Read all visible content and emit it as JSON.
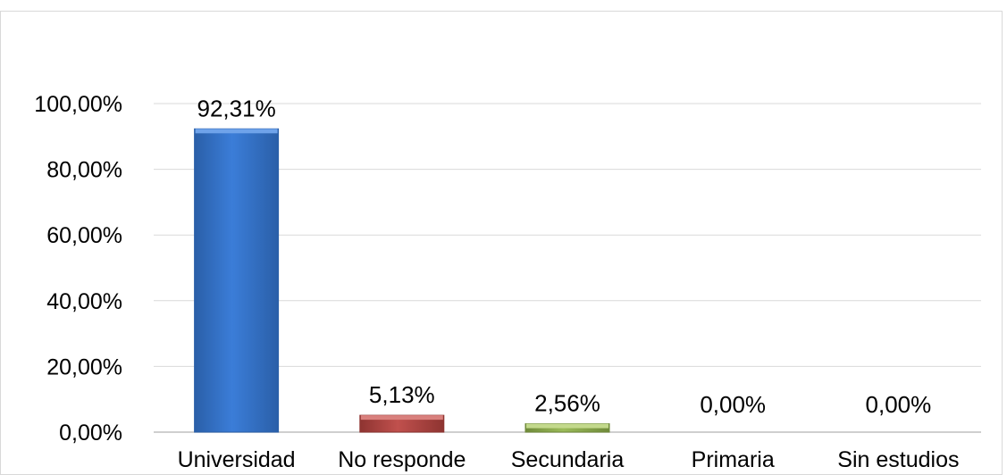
{
  "chart_data": {
    "type": "bar",
    "categories": [
      "Universidad",
      "No responde",
      "Secundaria",
      "Primaria",
      "Sin estudios"
    ],
    "values": [
      92.31,
      5.13,
      2.56,
      0.0,
      0.0
    ],
    "value_labels": [
      "92,31%",
      "5,13%",
      "2,56%",
      "0,00%",
      "0,00%"
    ],
    "y_ticks": [
      0,
      20,
      40,
      60,
      80,
      100
    ],
    "y_tick_labels": [
      "0,00%",
      "20,00%",
      "40,00%",
      "60,00%",
      "80,00%",
      "100,00%"
    ],
    "ylim": [
      0,
      100
    ],
    "grid": true,
    "title": "",
    "xlabel": "",
    "ylabel": "",
    "colors": {
      "bars": [
        "#3b7dd8",
        "#c0504d",
        "#9bbb59",
        "#4f81bd",
        "#8064a2"
      ],
      "bar_tops": [
        "#6fa3ea",
        "#d9807d",
        "#c3d98c",
        "#7fa6d6",
        "#a58ec2"
      ],
      "bar_edges": [
        "#2a5fa8",
        "#8e3431",
        "#6f8a3a",
        "#3a6494",
        "#5d4780"
      ],
      "gridline": "#d9d9d9",
      "axis": "#bfbfbf"
    }
  }
}
